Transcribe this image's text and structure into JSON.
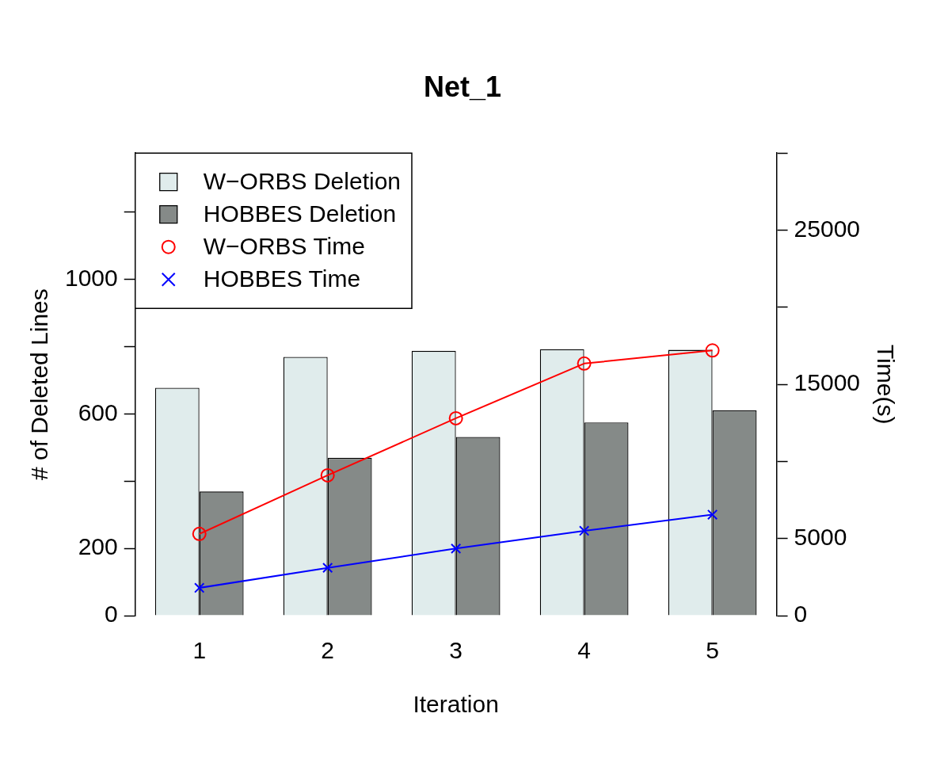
{
  "chart_data": {
    "type": "bar",
    "title": "Net_1",
    "xlabel": "Iteration",
    "ylabel": "# of Deleted Lines",
    "y2label": "Time(s)",
    "categories": [
      "1",
      "2",
      "3",
      "4",
      "5"
    ],
    "series": [
      {
        "name": "W−ORBS Deletion",
        "color": "#e0ecec",
        "values": [
          677,
          769,
          787,
          792,
          790
        ]
      },
      {
        "name": "HOBBES Deletion",
        "color": "#858a88",
        "values": [
          369,
          469,
          531,
          574,
          610
        ]
      },
      {
        "name": "W−ORBS Time",
        "type": "line",
        "axis": "y2",
        "marker": "circle",
        "color": "#ff0000",
        "values": [
          5300,
          9100,
          12800,
          16350,
          17200
        ]
      },
      {
        "name": "HOBBES Time",
        "type": "line",
        "axis": "y2",
        "marker": "cross",
        "color": "#0000ff",
        "values": [
          1800,
          3100,
          4350,
          5500,
          6550
        ]
      }
    ],
    "ylim": [
      0,
      1375
    ],
    "yticks": [
      0,
      200,
      {
        "value": 400,
        "label": null
      },
      600,
      {
        "value": 800,
        "label": null
      },
      1000,
      {
        "value": 1200,
        "label": null
      }
    ],
    "y2lim": [
      0,
      30000
    ],
    "y2ticks": [
      0,
      5000,
      {
        "value": 10000,
        "label": null
      },
      15000,
      {
        "value": 20000,
        "label": null
      },
      25000,
      {
        "value": 30000,
        "label": null
      }
    ],
    "grid": false,
    "legend": "top left"
  }
}
